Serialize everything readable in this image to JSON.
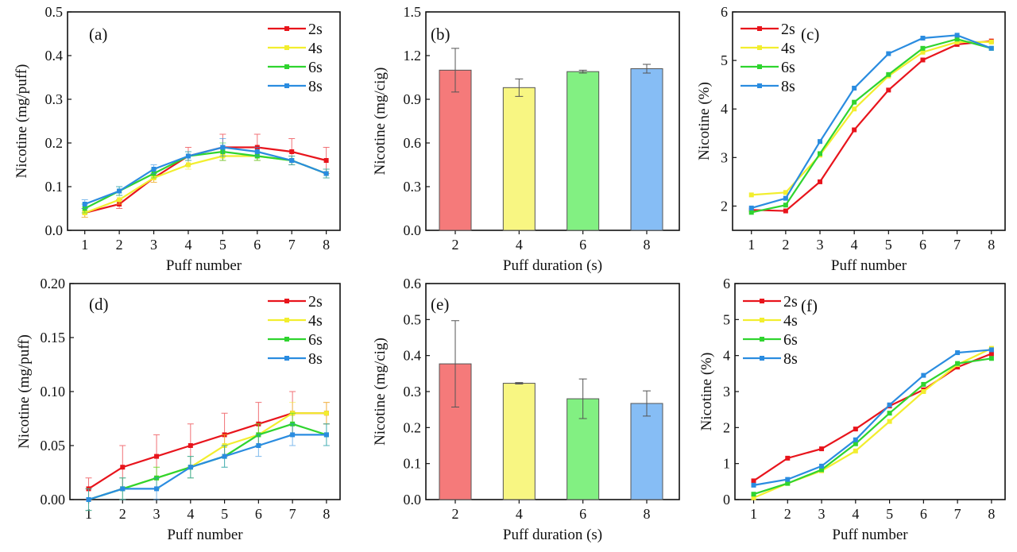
{
  "colors": {
    "2s": "#e8141c",
    "4s": "#f2ee2e",
    "6s": "#2fd42f",
    "8s": "#2a8ce0",
    "bar_fills": [
      "#f57a7a",
      "#f8f682",
      "#82f082",
      "#86bdf5"
    ]
  },
  "chart_data": [
    {
      "id": "a",
      "type": "line",
      "annotation": "(a)",
      "xlabel": "Puff number",
      "ylabel": "Nicotine (mg/puff)",
      "xlim": [
        0.5,
        8.4
      ],
      "ylim": [
        0,
        0.5
      ],
      "legend": "top-right",
      "grid": false,
      "xticks": [
        "1",
        "2",
        "3",
        "4",
        "5",
        "6",
        "7",
        "8"
      ],
      "yticks": [
        "0.0",
        "0.1",
        "0.2",
        "0.3",
        "0.4",
        "0.5"
      ],
      "x": [
        1,
        2,
        3,
        4,
        5,
        6,
        7,
        8
      ],
      "series": [
        {
          "name": "2s",
          "values": [
            0.04,
            0.06,
            0.12,
            0.17,
            0.19,
            0.19,
            0.18,
            0.16
          ],
          "error": [
            0.01,
            0.01,
            0.01,
            0.02,
            0.03,
            0.03,
            0.03,
            0.03
          ]
        },
        {
          "name": "4s",
          "values": [
            0.04,
            0.07,
            0.12,
            0.15,
            0.17,
            0.17,
            0.16,
            0.13
          ],
          "error": [
            0.01,
            0.01,
            0.01,
            0.01,
            0.01,
            0.01,
            0.01,
            0.01
          ]
        },
        {
          "name": "6s",
          "values": [
            0.05,
            0.09,
            0.13,
            0.17,
            0.18,
            0.17,
            0.16,
            0.13
          ],
          "error": [
            0.01,
            0.01,
            0.01,
            0.01,
            0.02,
            0.01,
            0.01,
            0.01
          ]
        },
        {
          "name": "8s",
          "values": [
            0.06,
            0.09,
            0.14,
            0.17,
            0.19,
            0.18,
            0.16,
            0.13
          ],
          "error": [
            0.01,
            0.01,
            0.01,
            0.01,
            0.02,
            0.01,
            0.01,
            0.01
          ]
        }
      ]
    },
    {
      "id": "b",
      "type": "bar",
      "annotation": "(b)",
      "xlabel": "Puff duration (s)",
      "ylabel": "Nicotine (mg/cig)",
      "ylim": [
        0,
        1.5
      ],
      "grid": false,
      "categories": [
        "2",
        "4",
        "6",
        "8"
      ],
      "yticks": [
        "0.0",
        "0.3",
        "0.6",
        "0.9",
        "1.2",
        "1.5"
      ],
      "values": [
        1.1,
        0.98,
        1.09,
        1.11
      ],
      "error": [
        0.15,
        0.06,
        0.01,
        0.03
      ]
    },
    {
      "id": "c",
      "type": "line",
      "annotation": "(c)",
      "xlabel": "Puff number",
      "ylabel": "Nicotine (%)",
      "xlim": [
        0.45,
        8.4
      ],
      "ylim": [
        1.5,
        6
      ],
      "legend": "top-left",
      "grid": false,
      "xticks": [
        "1",
        "2",
        "3",
        "4",
        "5",
        "6",
        "7",
        "8"
      ],
      "yticks": [
        "2",
        "3",
        "4",
        "5",
        "6"
      ],
      "x": [
        1,
        2,
        3,
        4,
        5,
        6,
        7,
        8
      ],
      "series": [
        {
          "name": "2s",
          "values": [
            1.92,
            1.9,
            2.5,
            3.57,
            4.39,
            5.01,
            5.33,
            5.4
          ]
        },
        {
          "name": "4s",
          "values": [
            2.23,
            2.28,
            3.05,
            4.0,
            4.68,
            5.17,
            5.38,
            5.38
          ]
        },
        {
          "name": "6s",
          "values": [
            1.87,
            2.02,
            3.08,
            4.14,
            4.71,
            5.25,
            5.44,
            5.25
          ]
        },
        {
          "name": "8s",
          "values": [
            1.96,
            2.16,
            3.33,
            4.43,
            5.14,
            5.46,
            5.52,
            5.25
          ]
        }
      ]
    },
    {
      "id": "d",
      "type": "line",
      "annotation": "(d)",
      "xlabel": "Puff number",
      "ylabel": "Nicotine (mg/puff)",
      "xlim": [
        0.45,
        8.4
      ],
      "ylim": [
        0,
        0.2
      ],
      "legend": "top-right",
      "grid": false,
      "xticks": [
        "1",
        "2",
        "3",
        "4",
        "5",
        "6",
        "7",
        "8"
      ],
      "yticks": [
        "0.00",
        "0.05",
        "0.10",
        "0.15",
        "0.20"
      ],
      "x": [
        1,
        2,
        3,
        4,
        5,
        6,
        7,
        8
      ],
      "series": [
        {
          "name": "2s",
          "values": [
            0.01,
            0.03,
            0.04,
            0.05,
            0.06,
            0.07,
            0.08,
            0.08
          ],
          "error": [
            0.01,
            0.02,
            0.02,
            0.02,
            0.02,
            0.02,
            0.02,
            0.01
          ]
        },
        {
          "name": "4s",
          "values": [
            0.0,
            0.01,
            0.02,
            0.03,
            0.05,
            0.06,
            0.08,
            0.08
          ],
          "error": [
            0.01,
            0.01,
            0.01,
            0.01,
            0.01,
            0.01,
            0.01,
            0.01
          ]
        },
        {
          "name": "6s",
          "values": [
            0.0,
            0.01,
            0.02,
            0.03,
            0.04,
            0.06,
            0.07,
            0.06
          ],
          "error": [
            0.01,
            0.01,
            0.01,
            0.01,
            0.01,
            0.01,
            0.01,
            0.01
          ]
        },
        {
          "name": "8s",
          "values": [
            0.0,
            0.01,
            0.01,
            0.03,
            0.04,
            0.05,
            0.06,
            0.06
          ],
          "error": [
            0.01,
            0.01,
            0.01,
            0.01,
            0.01,
            0.01,
            0.01,
            0.01
          ]
        }
      ]
    },
    {
      "id": "e",
      "type": "bar",
      "annotation": "(e)",
      "xlabel": "Puff duration (s)",
      "ylabel": "Nicotine (mg/cig)",
      "ylim": [
        0,
        0.6
      ],
      "grid": false,
      "categories": [
        "2",
        "4",
        "6",
        "8"
      ],
      "yticks": [
        "0.0",
        "0.1",
        "0.2",
        "0.3",
        "0.4",
        "0.5",
        "0.6"
      ],
      "values": [
        0.377,
        0.323,
        0.28,
        0.267
      ],
      "error": [
        0.12,
        0.002,
        0.055,
        0.035
      ]
    },
    {
      "id": "f",
      "type": "line",
      "annotation": "(f)",
      "xlabel": "Puff number",
      "ylabel": "Nicotine (%)",
      "xlim": [
        0.45,
        8.4
      ],
      "ylim": [
        0,
        6
      ],
      "legend": "top-left",
      "grid": false,
      "xticks": [
        "1",
        "2",
        "3",
        "4",
        "5",
        "6",
        "7",
        "8"
      ],
      "yticks": [
        "0",
        "1",
        "2",
        "3",
        "4",
        "5",
        "6"
      ],
      "x": [
        1,
        2,
        3,
        4,
        5,
        6,
        7,
        8
      ],
      "series": [
        {
          "name": "2s",
          "values": [
            0.52,
            1.15,
            1.41,
            1.96,
            2.6,
            3.05,
            3.68,
            4.05
          ]
        },
        {
          "name": "4s",
          "values": [
            0.05,
            0.45,
            0.8,
            1.35,
            2.17,
            3.0,
            3.75,
            4.2
          ]
        },
        {
          "name": "6s",
          "values": [
            0.15,
            0.45,
            0.83,
            1.55,
            2.4,
            3.2,
            3.78,
            3.92
          ]
        },
        {
          "name": "8s",
          "values": [
            0.4,
            0.56,
            0.93,
            1.66,
            2.63,
            3.45,
            4.08,
            4.16
          ]
        }
      ]
    }
  ]
}
